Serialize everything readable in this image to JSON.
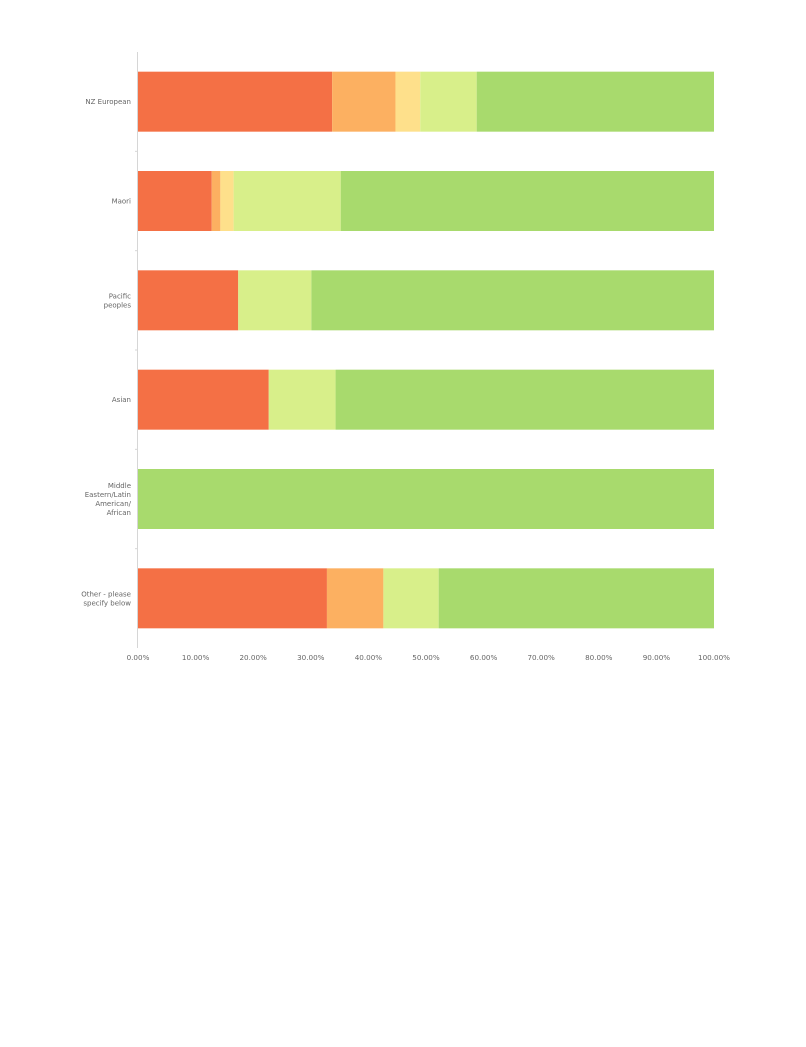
{
  "chart_data": {
    "type": "bar",
    "orientation": "horizontal",
    "stacked": true,
    "categories": [
      "NZ European",
      "Maori",
      "Pacific peoples",
      "Asian",
      "Middle Eastern/Latin American/African",
      "Other - please specify below"
    ],
    "series": [
      {
        "color": "#f47045",
        "values": [
          33.7,
          12.8,
          17.4,
          22.7,
          0.0,
          32.8
        ]
      },
      {
        "color": "#fcb061",
        "values": [
          11.0,
          1.5,
          0.0,
          0.0,
          0.0,
          9.8
        ]
      },
      {
        "color": "#fee08b",
        "values": [
          4.3,
          2.3,
          0.0,
          0.0,
          0.0,
          0.0
        ]
      },
      {
        "color": "#d8ef8a",
        "values": [
          9.8,
          18.6,
          12.7,
          11.6,
          0.0,
          9.6
        ]
      },
      {
        "color": "#a8da6d",
        "values": [
          41.2,
          64.8,
          69.9,
          65.7,
          100.0,
          47.8
        ]
      }
    ],
    "xlim": [
      0,
      100
    ],
    "x_tick_labels": [
      "0.00%",
      "10.00%",
      "20.00%",
      "30.00%",
      "40.00%",
      "50.00%",
      "60.00%",
      "70.00%",
      "80.00%",
      "90.00%",
      "100.00%"
    ],
    "xlabel": "",
    "ylabel": "",
    "title": "",
    "grid": false,
    "legend": "none"
  }
}
